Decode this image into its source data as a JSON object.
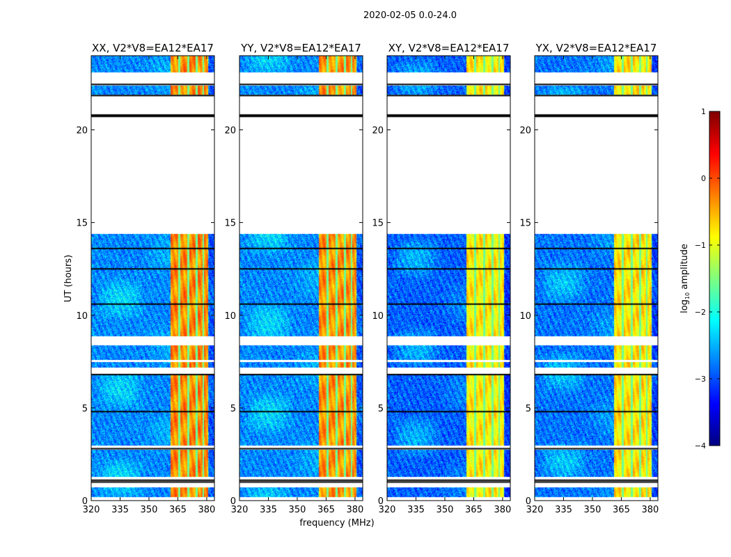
{
  "chart_data": {
    "type": "heatmap",
    "suptitle": "2020-02-05 0.0-24.0",
    "xlabel": "frequency (MHz)",
    "ylabel": "UT (hours)",
    "xlim": [
      320,
      384
    ],
    "ylim": [
      0,
      24
    ],
    "x_ticks": [
      "320",
      "335",
      "350",
      "365",
      "380"
    ],
    "x_tick_values": [
      320,
      335,
      350,
      365,
      380
    ],
    "y_ticks": [
      "0",
      "5",
      "10",
      "15",
      "20"
    ],
    "y_tick_values": [
      0,
      5,
      10,
      15,
      20
    ],
    "panels": [
      {
        "title": "XX, V2*V8=EA12*EA17",
        "baseline_log_amp": -2.7,
        "band_log_amp": -0.3
      },
      {
        "title": "YY, V2*V8=EA12*EA17",
        "baseline_log_amp": -2.7,
        "band_log_amp": -0.35
      },
      {
        "title": "XY, V2*V8=EA12*EA17",
        "baseline_log_amp": -2.9,
        "band_log_amp": -0.8
      },
      {
        "title": "YX, V2*V8=EA12*EA17",
        "baseline_log_amp": -2.8,
        "band_log_amp": -0.75
      }
    ],
    "bright_band_mhz": [
      361,
      380.5
    ],
    "channel_gaps_mhz": [
      365.5,
      370.2,
      374.6,
      378.1
    ],
    "data_segments_hours": [
      [
        0.2,
        0.75
      ],
      [
        1.3,
        2.75
      ],
      [
        3.0,
        4.8
      ],
      [
        4.8,
        6.8
      ],
      [
        7.2,
        7.5
      ],
      [
        7.6,
        8.4
      ],
      [
        8.9,
        10.5
      ],
      [
        10.5,
        14.4
      ],
      [
        21.9,
        22.4
      ],
      [
        23.1,
        24.0
      ]
    ],
    "black_lines_hours": [
      1.0,
      1.1,
      2.8,
      4.8,
      6.8,
      10.6,
      12.5,
      13.6,
      20.8,
      21.85,
      22.45
    ],
    "colorbar": {
      "label": "log10 amplitude",
      "label_main": "log",
      "label_sub": "10",
      "label_rest": " amplitude",
      "range": [
        -4,
        1
      ],
      "ticks": [
        "1",
        "0",
        "−1",
        "−2",
        "−3",
        "−4"
      ],
      "tick_values": [
        1,
        0,
        -1,
        -2,
        -3,
        -4
      ],
      "colormap": "jet"
    }
  }
}
